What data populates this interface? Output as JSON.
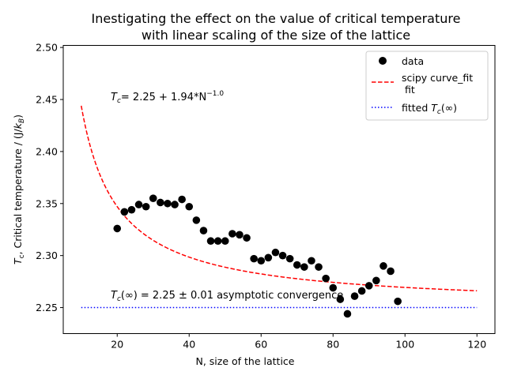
{
  "chart_data": {
    "type": "scatter",
    "title_line1": "Inestigating the effect on the value of critical temperature",
    "title_line2": "with linear scaling of the size of the lattice",
    "xlabel": "N, size of the lattice",
    "ylabel": "T_c, Critical temperature / (J/k_B)",
    "xlim": [
      5,
      125
    ],
    "ylim": [
      2.225,
      2.502
    ],
    "xticks": [
      20,
      40,
      60,
      80,
      100,
      120
    ],
    "yticks": [
      2.25,
      2.3,
      2.35,
      2.4,
      2.45,
      2.5
    ],
    "ytick_labels": [
      "2.25",
      "2.30",
      "2.35",
      "2.40",
      "2.45",
      "2.50"
    ],
    "grid": false,
    "legend_placement": "top-right",
    "legend": [
      {
        "label": "data",
        "style": "marker",
        "color": "#000000"
      },
      {
        "label": "scipy curve_fit",
        "label2": "fit",
        "style": "dashed",
        "color": "#ff0000"
      },
      {
        "label": "fitted T_c(∞)",
        "style": "dotted",
        "color": "#0000ff"
      }
    ],
    "annotations": {
      "fit_equation": "= 2.25 + 1.94*N",
      "fit_exponent": "−1.0",
      "asymptote": "= 2.25 ± 0.01 asymptotic convergence"
    },
    "fit": {
      "a": 2.25,
      "b": 1.94,
      "exponent": -1.0,
      "x_from": 10,
      "x_to": 120
    },
    "asymptote": {
      "value": 2.25,
      "x_from": 10,
      "x_to": 120
    },
    "series": [
      {
        "name": "data",
        "x": [
          20,
          22,
          24,
          26,
          28,
          30,
          32,
          34,
          36,
          38,
          40,
          42,
          44,
          46,
          48,
          50,
          52,
          54,
          56,
          58,
          60,
          62,
          64,
          66,
          68,
          70,
          72,
          74,
          76,
          78,
          80,
          82,
          84,
          86,
          88,
          90,
          92,
          94,
          96,
          98
        ],
        "y": [
          2.326,
          2.342,
          2.344,
          2.349,
          2.347,
          2.355,
          2.351,
          2.35,
          2.349,
          2.354,
          2.347,
          2.334,
          2.324,
          2.314,
          2.314,
          2.314,
          2.321,
          2.32,
          2.317,
          2.297,
          2.295,
          2.298,
          2.303,
          2.3,
          2.297,
          2.291,
          2.289,
          2.295,
          2.289,
          2.278,
          2.269,
          2.258,
          2.244,
          2.261,
          2.266,
          2.271,
          2.276,
          2.29,
          2.285,
          2.256
        ],
        "color": "#000000"
      }
    ]
  }
}
